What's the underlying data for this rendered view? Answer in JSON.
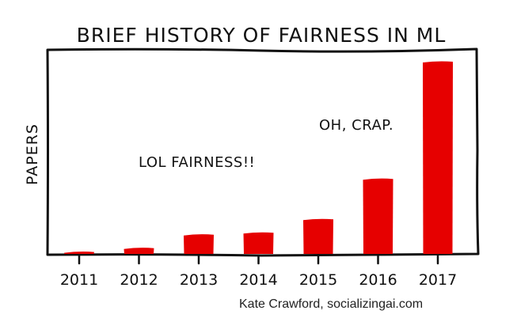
{
  "chart_data": {
    "type": "bar",
    "title": "BRIEF HISTORY OF FAIRNESS IN ML",
    "xlabel": "",
    "ylabel": "PAPERS",
    "categories": [
      "2011",
      "2012",
      "2013",
      "2014",
      "2015",
      "2016",
      "2017"
    ],
    "values": [
      1,
      3,
      10,
      11,
      18,
      39,
      100
    ],
    "ylim": [
      0,
      105
    ],
    "bar_color": "#e60000",
    "grid": false,
    "annotations": [
      {
        "text": "LOL FAIRNESS!!"
      },
      {
        "text": "OH, CRAP."
      }
    ]
  },
  "credit": "Kate Crawford, socializingai.com"
}
